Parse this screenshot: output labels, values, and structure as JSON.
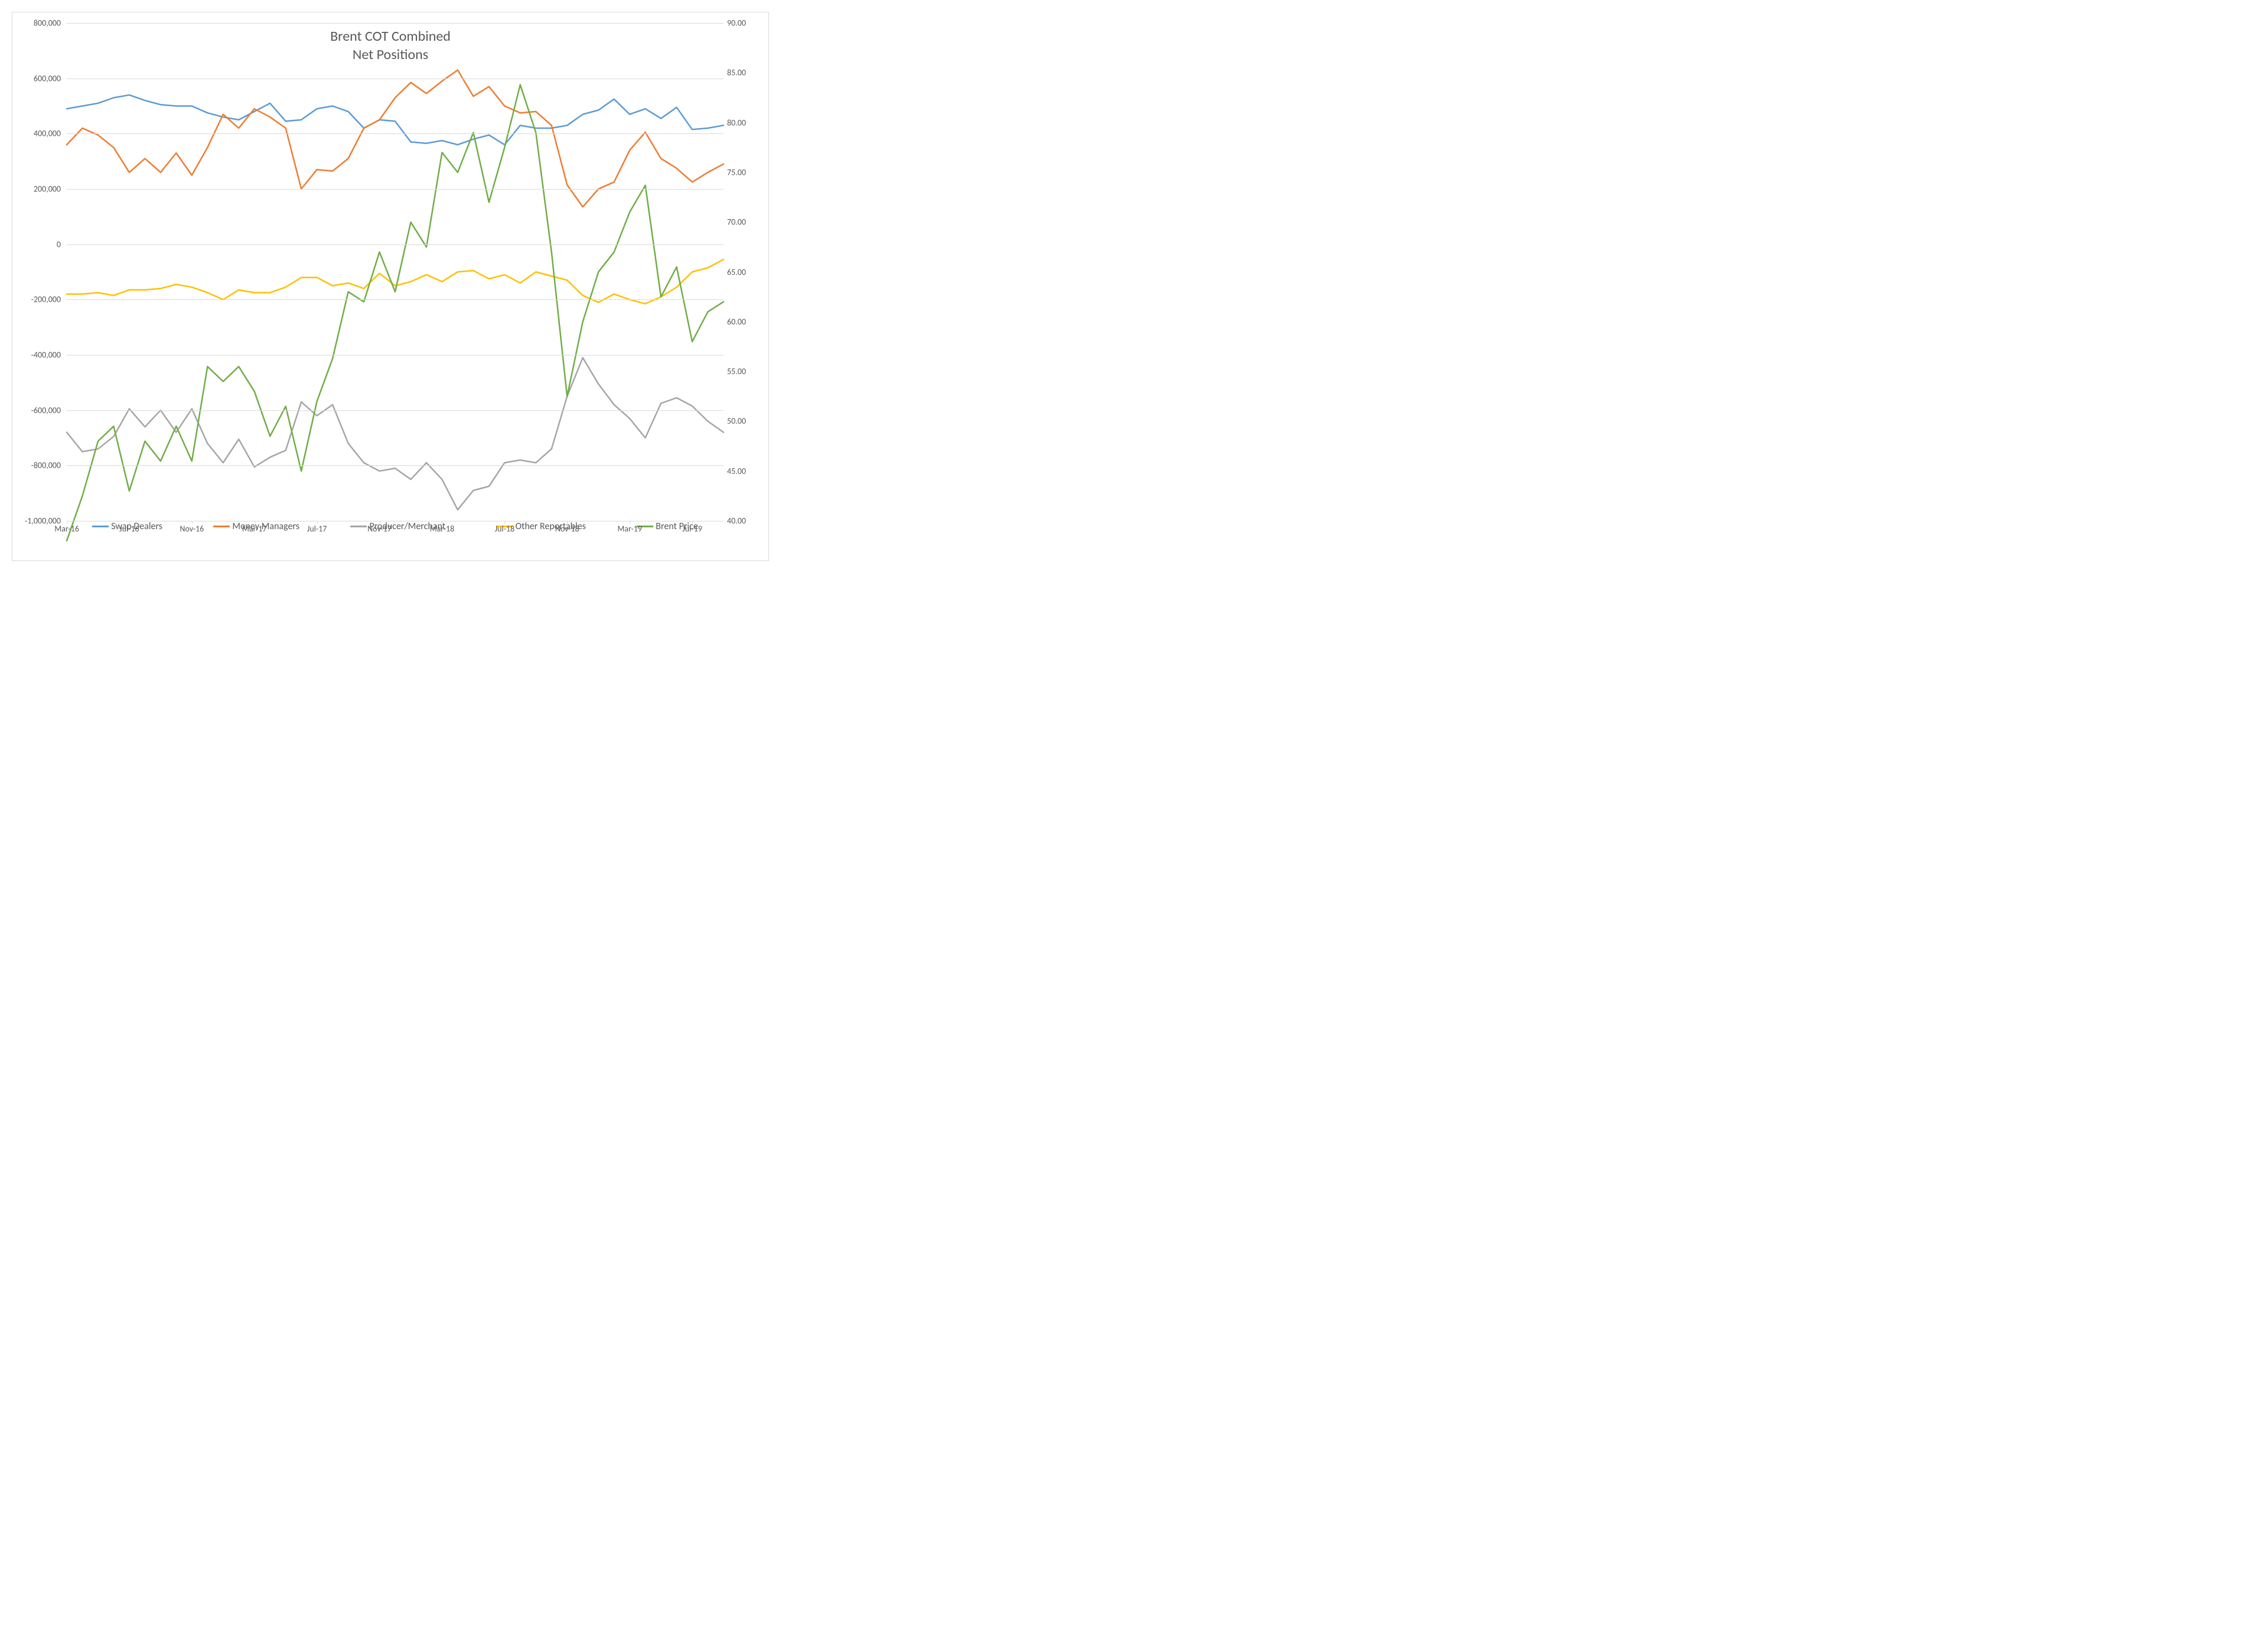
{
  "chart": {
    "title_line1": "Brent COT Combined",
    "title_line2": "Net Positions",
    "title_fontsize": 24,
    "title_color": "#595959",
    "background_color": "#ffffff",
    "border_color": "#d9d9d9",
    "grid_color": "#d9d9d9",
    "axis_label_color": "#595959",
    "axis_label_fontsize": 14,
    "legend_fontsize": 16,
    "line_width": 2.5,
    "left_axis": {
      "min": -1000000,
      "max": 800000,
      "step": 200000,
      "labels": [
        "-1,000,000",
        "-800,000",
        "-600,000",
        "-400,000",
        "-200,000",
        "0",
        "200,000",
        "400,000",
        "600,000",
        "800,000"
      ]
    },
    "right_axis": {
      "min": 40,
      "max": 90,
      "step": 5,
      "labels": [
        "40.00",
        "45.00",
        "50.00",
        "55.00",
        "60.00",
        "65.00",
        "70.00",
        "75.00",
        "80.00",
        "85.00",
        "90.00"
      ]
    },
    "x_axis": {
      "labels": [
        "Mar-16",
        "Jul-16",
        "Nov-16",
        "Mar-17",
        "Jul-17",
        "Nov-17",
        "Mar-18",
        "Jul-18",
        "Nov-18",
        "Mar-19",
        "Jul-19"
      ],
      "indices": [
        0,
        4,
        8,
        12,
        16,
        20,
        24,
        28,
        32,
        36,
        40
      ],
      "n_points": 43
    },
    "series": [
      {
        "name": "Swap Dealers",
        "color": "#5b9bd5",
        "axis": "left",
        "data": [
          490000,
          500000,
          510000,
          530000,
          540000,
          520000,
          505000,
          500000,
          500000,
          475000,
          460000,
          450000,
          480000,
          510000,
          445000,
          450000,
          490000,
          500000,
          480000,
          420000,
          450000,
          445000,
          370000,
          365000,
          375000,
          360000,
          380000,
          395000,
          360000,
          430000,
          420000,
          420000,
          430000,
          470000,
          485000,
          525000,
          470000,
          490000,
          455000,
          495000,
          415000,
          420000,
          430000
        ]
      },
      {
        "name": "Money Managers",
        "color": "#ed7d31",
        "axis": "left",
        "data": [
          360000,
          420000,
          395000,
          350000,
          260000,
          310000,
          260000,
          330000,
          250000,
          350000,
          470000,
          420000,
          490000,
          460000,
          420000,
          200000,
          270000,
          265000,
          310000,
          420000,
          450000,
          530000,
          585000,
          545000,
          590000,
          630000,
          535000,
          570000,
          500000,
          475000,
          480000,
          430000,
          215000,
          135000,
          200000,
          225000,
          340000,
          405000,
          310000,
          275000,
          225000,
          260000,
          290000
        ]
      },
      {
        "name": "Producer/Merchant",
        "color": "#a5a5a5",
        "axis": "left",
        "data": [
          -680000,
          -750000,
          -740000,
          -695000,
          -595000,
          -660000,
          -600000,
          -680000,
          -595000,
          -720000,
          -790000,
          -705000,
          -805000,
          -770000,
          -745000,
          -570000,
          -620000,
          -580000,
          -720000,
          -790000,
          -820000,
          -810000,
          -850000,
          -790000,
          -850000,
          -960000,
          -890000,
          -875000,
          -790000,
          -780000,
          -790000,
          -740000,
          -550000,
          -410000,
          -505000,
          -580000,
          -630000,
          -700000,
          -575000,
          -555000,
          -585000,
          -640000,
          -680000
        ]
      },
      {
        "name": "Other Reportables",
        "color": "#ffc000",
        "axis": "left",
        "data": [
          -180000,
          -180000,
          -175000,
          -185000,
          -165000,
          -165000,
          -160000,
          -145000,
          -155000,
          -175000,
          -200000,
          -165000,
          -175000,
          -175000,
          -155000,
          -120000,
          -120000,
          -150000,
          -140000,
          -160000,
          -105000,
          -150000,
          -135000,
          -110000,
          -135000,
          -100000,
          -95000,
          -125000,
          -110000,
          -140000,
          -100000,
          -115000,
          -130000,
          -185000,
          -210000,
          -180000,
          -200000,
          -215000,
          -190000,
          -155000,
          -100000,
          -85000,
          -55000
        ]
      },
      {
        "name": "Brent Price",
        "color": "#70ad47",
        "axis": "right",
        "data": [
          38.0,
          42.5,
          48.0,
          49.5,
          43.0,
          48.0,
          46.0,
          49.5,
          46.0,
          55.5,
          54.0,
          55.5,
          53.0,
          48.5,
          51.5,
          45.0,
          52.0,
          56.3,
          63.0,
          62.0,
          67.0,
          63.0,
          70.0,
          67.5,
          77.0,
          75.0,
          79.0,
          72.0,
          77.5,
          83.8,
          79.0,
          67.0,
          52.5,
          60.0,
          65.0,
          67.0,
          71.0,
          73.7,
          62.5,
          65.5,
          58.0,
          61.0,
          62.0
        ]
      }
    ],
    "legend": [
      {
        "label": "Swap Dealers",
        "color": "#5b9bd5"
      },
      {
        "label": "Money Managers",
        "color": "#ed7d31"
      },
      {
        "label": "Producer/Merchant",
        "color": "#a5a5a5"
      },
      {
        "label": "Other Reportables",
        "color": "#ffc000"
      },
      {
        "label": "Brent Price",
        "color": "#70ad47"
      }
    ]
  }
}
